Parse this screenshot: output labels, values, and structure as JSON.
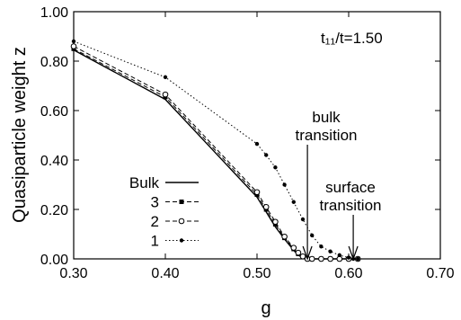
{
  "chart_data": {
    "type": "line",
    "annotation_param": "t₁₁/t=1.50",
    "xlabel": "g",
    "ylabel": "Quasiparticle weight z",
    "xlim": [
      0.3,
      0.7
    ],
    "ylim": [
      0.0,
      1.0
    ],
    "xticks": [
      "0.30",
      "0.40",
      "0.50",
      "0.60",
      "0.70"
    ],
    "yticks": [
      "0.00",
      "0.20",
      "0.40",
      "0.60",
      "0.80",
      "1.00"
    ],
    "grid": false,
    "legend_position": "bottom-left",
    "annotations": [
      {
        "lines": [
          "bulk",
          "transition"
        ],
        "x": 0.555,
        "y": 0.0
      },
      {
        "lines": [
          "surface",
          "transition"
        ],
        "x": 0.605,
        "y": 0.0
      }
    ],
    "series": [
      {
        "name": "Bulk",
        "style": "solid",
        "marker": "none",
        "x": [
          0.3,
          0.4,
          0.5,
          0.51,
          0.52,
          0.53,
          0.54,
          0.545,
          0.55,
          0.555,
          0.56,
          0.57,
          0.58,
          0.59,
          0.6,
          0.61
        ],
        "y": [
          0.845,
          0.645,
          0.25,
          0.19,
          0.13,
          0.08,
          0.035,
          0.015,
          0.005,
          0.0,
          0.0,
          0.0,
          0.0,
          0.0,
          0.0,
          0.0
        ]
      },
      {
        "name": "3",
        "style": "dashed",
        "marker": "square",
        "x": [
          0.3,
          0.4,
          0.5,
          0.51,
          0.52,
          0.53,
          0.54,
          0.545,
          0.55,
          0.555,
          0.56,
          0.57,
          0.58,
          0.59,
          0.6,
          0.61
        ],
        "y": [
          0.85,
          0.655,
          0.26,
          0.2,
          0.14,
          0.085,
          0.04,
          0.02,
          0.008,
          0.0,
          0.0,
          0.0,
          0.0,
          0.0,
          0.0,
          0.0
        ]
      },
      {
        "name": "2",
        "style": "dashed",
        "marker": "circle",
        "x": [
          0.3,
          0.4,
          0.5,
          0.51,
          0.52,
          0.53,
          0.54,
          0.545,
          0.55,
          0.555,
          0.56,
          0.57,
          0.58,
          0.59,
          0.6,
          0.61
        ],
        "y": [
          0.86,
          0.665,
          0.27,
          0.21,
          0.15,
          0.09,
          0.045,
          0.025,
          0.01,
          0.0,
          0.0,
          0.0,
          0.0,
          0.0,
          0.0,
          0.0
        ]
      },
      {
        "name": "1",
        "style": "dotted",
        "marker": "dot",
        "x": [
          0.3,
          0.4,
          0.5,
          0.51,
          0.52,
          0.53,
          0.54,
          0.55,
          0.56,
          0.57,
          0.58,
          0.59,
          0.6,
          0.605,
          0.61
        ],
        "y": [
          0.88,
          0.735,
          0.465,
          0.42,
          0.37,
          0.3,
          0.23,
          0.16,
          0.095,
          0.05,
          0.03,
          0.015,
          0.005,
          0.0,
          0.0
        ]
      }
    ]
  }
}
